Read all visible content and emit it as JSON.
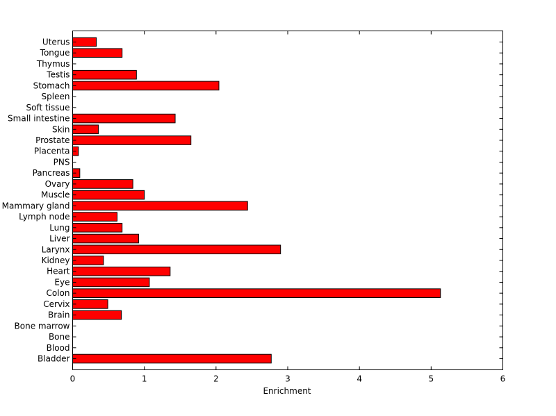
{
  "chart_data": {
    "type": "bar",
    "orientation": "horizontal",
    "title": "",
    "xlabel": "Enrichment",
    "ylabel": "",
    "xlim": [
      0,
      6
    ],
    "x_ticks": [
      0,
      1,
      2,
      3,
      4,
      5,
      6
    ],
    "grid": false,
    "bar_color": "#ff0000",
    "edge_color": "#000000",
    "categories": [
      "Bladder",
      "Blood",
      "Bone",
      "Bone marrow",
      "Brain",
      "Cervix",
      "Colon",
      "Eye",
      "Heart",
      "Kidney",
      "Larynx",
      "Liver",
      "Lung",
      "Lymph node",
      "Mammary gland",
      "Muscle",
      "Ovary",
      "Pancreas",
      "PNS",
      "Placenta",
      "Prostate",
      "Skin",
      "Small intestine",
      "Soft tissue",
      "Spleen",
      "Stomach",
      "Testis",
      "Thymus",
      "Tongue",
      "Uterus"
    ],
    "values": [
      2.77,
      0,
      0,
      0,
      0.68,
      0.49,
      5.13,
      1.07,
      1.36,
      0.43,
      2.9,
      0.92,
      0.69,
      0.62,
      2.44,
      1.0,
      0.84,
      0.1,
      0,
      0.08,
      1.65,
      0.36,
      1.43,
      0,
      0,
      2.04,
      0.89,
      0,
      0.69,
      0.33
    ]
  }
}
